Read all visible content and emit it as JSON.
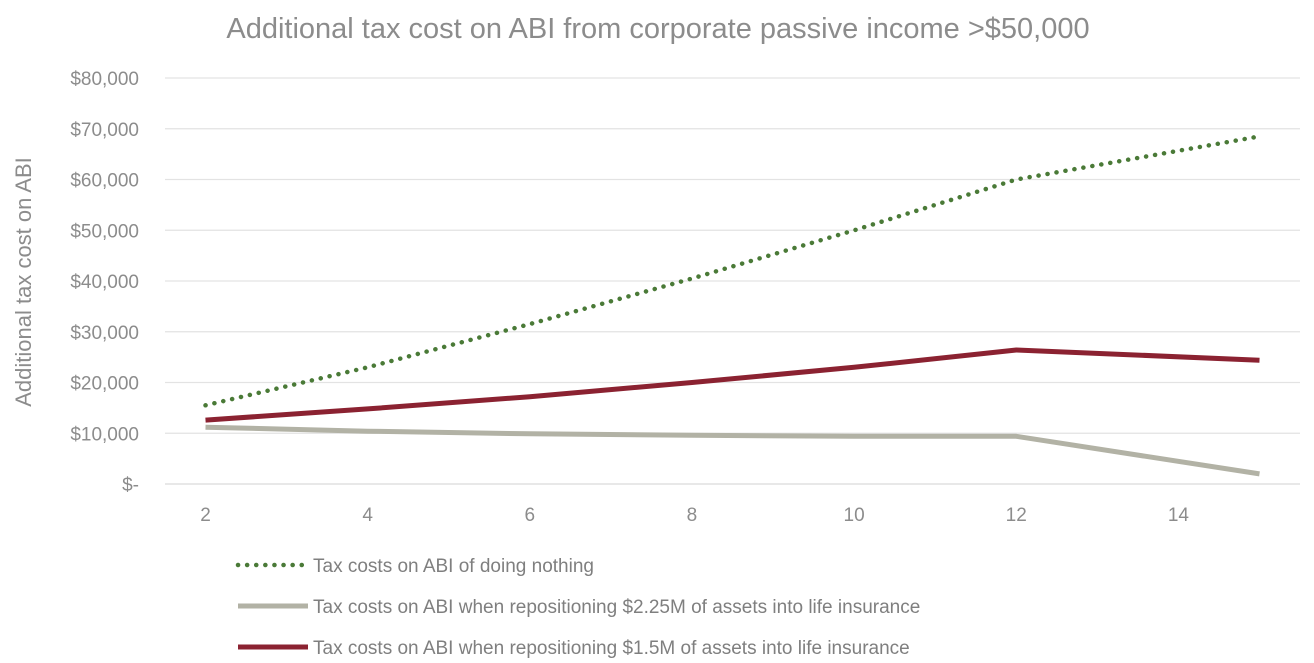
{
  "chart_data": {
    "type": "line",
    "title": "Additional tax cost on ABI from corporate passive income >$50,000",
    "xlabel": "",
    "ylabel": "Additional tax cost on ABI",
    "x": [
      2,
      4,
      6,
      8,
      10,
      12,
      15
    ],
    "x_ticks": [
      2,
      4,
      6,
      8,
      10,
      12,
      14
    ],
    "x_tick_labels": [
      "2",
      "4",
      "6",
      "8",
      "10",
      "12",
      "14"
    ],
    "xlim": [
      1.5,
      15.5
    ],
    "ylim": [
      0,
      80000
    ],
    "y_ticks": [
      0,
      10000,
      20000,
      30000,
      40000,
      50000,
      60000,
      70000,
      80000
    ],
    "y_tick_labels": [
      "$-",
      "$10,000",
      "$20,000",
      "$30,000",
      "$40,000",
      "$50,000",
      "$60,000",
      "$70,000",
      "$80,000"
    ],
    "grid": true,
    "legend_position": "bottom",
    "series": [
      {
        "name": "Tax costs on ABI of doing nothing",
        "color": "#4a7a37",
        "style": "dotted",
        "values": [
          15500,
          23000,
          31500,
          40500,
          50000,
          60000,
          68500
        ]
      },
      {
        "name": "Tax costs on ABI when repositioning $2.25M of assets into life insurance",
        "color": "#b2b2a5",
        "style": "solid",
        "values": [
          11200,
          10400,
          9900,
          9600,
          9400,
          9400,
          2000
        ]
      },
      {
        "name": "Tax costs on ABI when repositioning $1.5M of assets into life insurance",
        "color": "#8b2231",
        "style": "solid",
        "values": [
          12600,
          14800,
          17200,
          20000,
          23000,
          26400,
          24400
        ]
      }
    ]
  }
}
